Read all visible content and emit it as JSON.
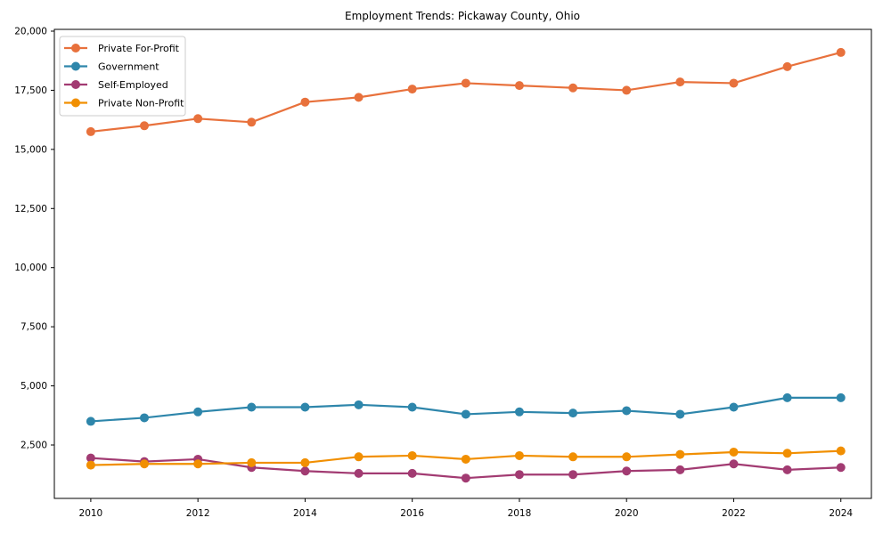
{
  "chart_data": {
    "type": "line",
    "title": "Employment Trends: Pickaway County, Ohio",
    "xlabel": "",
    "ylabel": "",
    "grid": false,
    "legend_position": "upper left",
    "marker": "circle",
    "x": [
      2010,
      2011,
      2012,
      2013,
      2014,
      2015,
      2016,
      2017,
      2018,
      2019,
      2020,
      2021,
      2022,
      2023,
      2024
    ],
    "series": [
      {
        "name": "Private For-Profit",
        "color": "#E8713C",
        "values": [
          15750,
          16000,
          16300,
          16150,
          17000,
          17200,
          17550,
          17800,
          17700,
          17600,
          17500,
          17850,
          17800,
          18500,
          19100
        ]
      },
      {
        "name": "Government",
        "color": "#2E86AB",
        "values": [
          3500,
          3650,
          3900,
          4100,
          4100,
          4200,
          4100,
          3800,
          3900,
          3850,
          3950,
          3800,
          4100,
          4500,
          4500
        ]
      },
      {
        "name": "Self-Employed",
        "color": "#A23B72",
        "values": [
          1950,
          1800,
          1900,
          1550,
          1400,
          1300,
          1300,
          1100,
          1250,
          1250,
          1400,
          1450,
          1700,
          1450,
          1550
        ]
      },
      {
        "name": "Private Non-Profit",
        "color": "#F18F01",
        "values": [
          1650,
          1700,
          1700,
          1750,
          1750,
          2000,
          2050,
          1900,
          2050,
          2000,
          2000,
          2100,
          2200,
          2150,
          2250
        ]
      }
    ],
    "x_ticks": [
      {
        "v": 2010,
        "label": "2010"
      },
      {
        "v": 2012,
        "label": "2012"
      },
      {
        "v": 2014,
        "label": "2014"
      },
      {
        "v": 2016,
        "label": "2016"
      },
      {
        "v": 2018,
        "label": "2018"
      },
      {
        "v": 2020,
        "label": "2020"
      },
      {
        "v": 2022,
        "label": "2022"
      },
      {
        "v": 2024,
        "label": "2024"
      }
    ],
    "y_ticks": [
      {
        "v": 2500,
        "label": "2,500"
      },
      {
        "v": 5000,
        "label": "5,000"
      },
      {
        "v": 7500,
        "label": "7,500"
      },
      {
        "v": 10000,
        "label": "10,000"
      },
      {
        "v": 12500,
        "label": "12,500"
      },
      {
        "v": 15000,
        "label": "15,000"
      },
      {
        "v": 17500,
        "label": "17,500"
      },
      {
        "v": 20000,
        "label": "20,000"
      }
    ],
    "xlim": [
      2009.32,
      2024.57
    ],
    "ylim": [
      242,
      20075
    ],
    "axis_color": "#000000",
    "legend_border_color": "#cccccc",
    "legend_bg_color": "#ffffff"
  }
}
